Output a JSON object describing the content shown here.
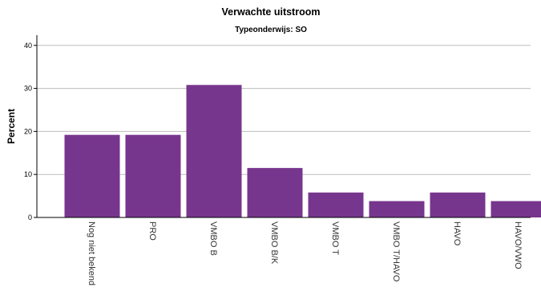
{
  "chart_data": {
    "type": "bar",
    "title": "Verwachte uitstroom",
    "subtitle": "Typeonderwijs: SO",
    "xlabel": "",
    "ylabel": "Percent",
    "ylim": [
      0,
      42
    ],
    "yticks": [
      0,
      10,
      20,
      30,
      40
    ],
    "grid": true,
    "bar_color": "#77368D",
    "categories": [
      "Nog niet bekend",
      "PRO",
      "VMBO B",
      "VMBO B/K",
      "VMBO T",
      "VMBO T/HAVO",
      "HAVO",
      "HAVO/VWO"
    ],
    "values": [
      19.2,
      19.2,
      30.8,
      11.5,
      5.8,
      3.8,
      5.8,
      3.8
    ]
  }
}
